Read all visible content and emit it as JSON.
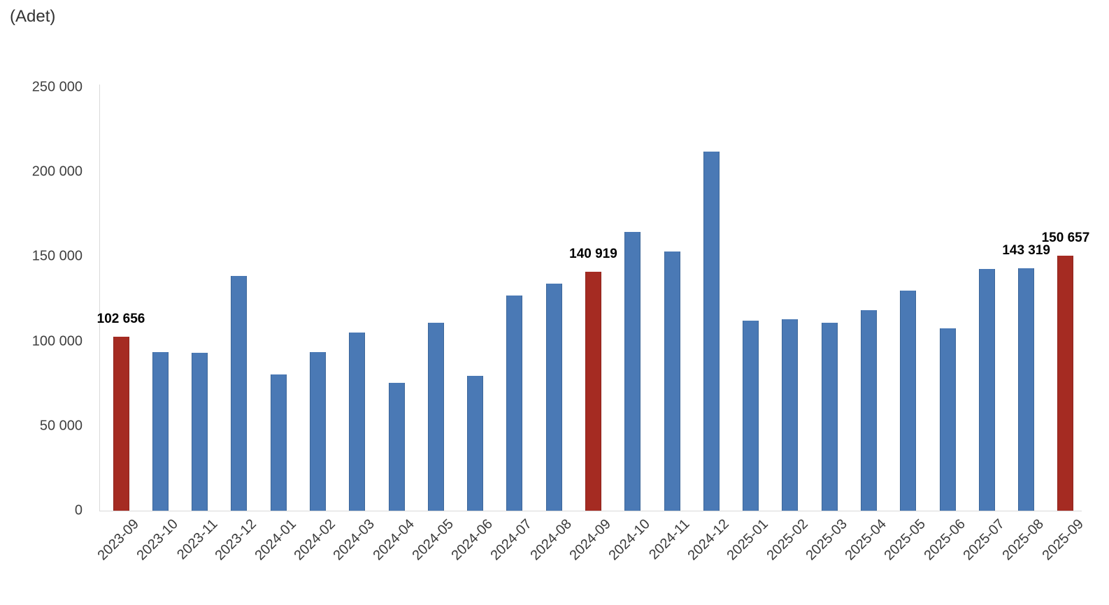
{
  "chart_data": {
    "type": "bar",
    "title": "(Adet)",
    "categories": [
      "2023-09",
      "2023-10",
      "2023-11",
      "2023-12",
      "2024-01",
      "2024-02",
      "2024-03",
      "2024-04",
      "2024-05",
      "2024-06",
      "2024-07",
      "2024-08",
      "2024-09",
      "2024-10",
      "2024-11",
      "2024-12",
      "2025-01",
      "2025-02",
      "2025-03",
      "2025-04",
      "2025-05",
      "2025-06",
      "2025-07",
      "2025-08",
      "2025-09"
    ],
    "values": [
      102656,
      93700,
      93400,
      138700,
      80500,
      93700,
      105400,
      75400,
      111000,
      79600,
      127200,
      134200,
      140919,
      164800,
      152900,
      212100,
      112100,
      112900,
      110900,
      118400,
      130000,
      107700,
      142800,
      143319,
      150657
    ],
    "highlighted_indices": [
      0,
      12,
      24
    ],
    "data_labels": [
      {
        "index": 0,
        "text": "102 656"
      },
      {
        "index": 12,
        "text": "140 919"
      },
      {
        "index": 23,
        "text": "143 319"
      },
      {
        "index": 24,
        "text": "150 657"
      }
    ],
    "ytick_labels": [
      "0",
      "50 000",
      "100 000",
      "150 000",
      "200 000",
      "250 000"
    ],
    "ytick_values": [
      0,
      50000,
      100000,
      150000,
      200000,
      250000
    ],
    "ylim": [
      0,
      250000
    ],
    "xlabel": "",
    "ylabel": "(Adet)",
    "grid": false,
    "legend": "none",
    "colors": {
      "bar": "#4A79B5",
      "bar_border": "#3C6699",
      "highlight": "#A52B22",
      "highlight_border": "#8E231C",
      "axis_line": "#d9d9d9",
      "tick_text": "#404040",
      "xlabel_text": "#3a3a3a",
      "title_text": "#333333",
      "data_label_text": "#000000"
    }
  }
}
